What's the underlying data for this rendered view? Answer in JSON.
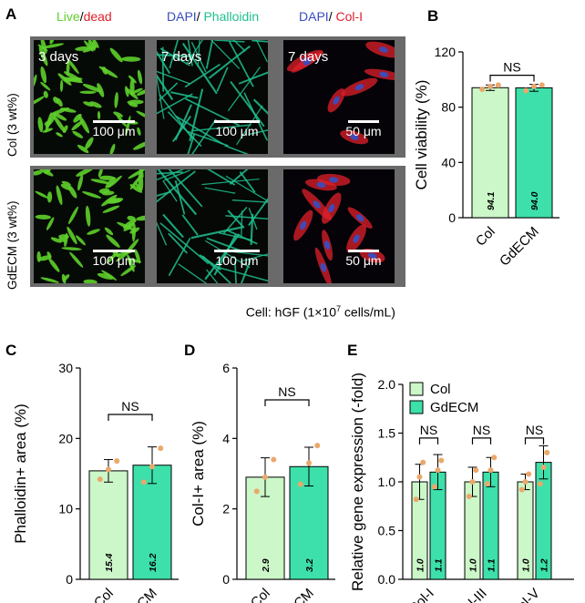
{
  "panel_a": {
    "letter": "A",
    "headers": {
      "col1_live": "Live",
      "col1_sep": "/",
      "col1_dead": "dead",
      "col2_dapi": "DAPI",
      "col2_sep": "/ ",
      "col2_phalloidin": "Phalloidin",
      "col3_dapi": "DAPI",
      "col3_sep": "/ ",
      "col3_coli": "Col-I"
    },
    "row_labels": [
      "Col (3 wt%)",
      "GdECM (3 wt%)"
    ],
    "time_labels": [
      "3 days",
      "7 days",
      "7 days"
    ],
    "scale_bars": [
      "100 μm",
      "100 μm",
      "50 μm",
      "100 μm",
      "100 μm",
      "50 μm"
    ],
    "cell_caption": "Cell: hGF (1×10",
    "cell_caption_exp": "7",
    "cell_caption_end": " cells/mL)",
    "colors": {
      "live": "#5ecf2b",
      "dead": "#e0202a",
      "dapi": "#3a4dbf",
      "phalloidin": "#1fbf8f",
      "coli": "#e0202a"
    }
  },
  "colors": {
    "col_fill": "#ccf7c9",
    "gdecm_fill": "#3de0aa",
    "dot": "#eba86b"
  },
  "chart_data": [
    {
      "panel": "B",
      "type": "bar",
      "categories": [
        "Col",
        "GdECM"
      ],
      "values": [
        94.1,
        94.0
      ],
      "value_labels": [
        "94.1",
        "94.0"
      ],
      "errors": [
        2,
        2.5
      ],
      "ylabel": "Cell viability (%)",
      "ylim": [
        0,
        120
      ],
      "yticks": [
        "0",
        "40",
        "80",
        "120"
      ],
      "significance": "NS",
      "points": [
        [
          93,
          95,
          96
        ],
        [
          92,
          95,
          96
        ]
      ]
    },
    {
      "panel": "C",
      "type": "bar",
      "categories": [
        "Col",
        "GdECM"
      ],
      "values": [
        15.4,
        16.2
      ],
      "value_labels": [
        "15.4",
        "16.2"
      ],
      "errors": [
        1.6,
        2.6
      ],
      "ylabel": "Phalloidin+ area (%)",
      "ylim": [
        0,
        30
      ],
      "yticks": [
        "0",
        "10",
        "20",
        "30"
      ],
      "significance": "NS",
      "points": [
        [
          14.2,
          15.6,
          16.8
        ],
        [
          13.8,
          16.0,
          18.6
        ]
      ]
    },
    {
      "panel": "D",
      "type": "bar",
      "categories": [
        "Col",
        "GdECM"
      ],
      "values": [
        2.9,
        3.2
      ],
      "value_labels": [
        "2.9",
        "3.2"
      ],
      "errors": [
        0.55,
        0.55
      ],
      "ylabel": "Col-I+ area (%)",
      "ylim": [
        0,
        6
      ],
      "yticks": [
        "0",
        "2",
        "4",
        "6"
      ],
      "significance": "NS",
      "points": [
        [
          2.5,
          2.9,
          3.4
        ],
        [
          2.7,
          3.3,
          3.8
        ]
      ]
    },
    {
      "panel": "E",
      "type": "bar",
      "categories": [
        "Col-I",
        "Col-III",
        "Col-V"
      ],
      "series": [
        {
          "name": "Col",
          "values": [
            1.0,
            1.0,
            1.0
          ],
          "value_labels": [
            "1.0",
            "1.0",
            "1.0"
          ],
          "errors": [
            0.18,
            0.15,
            0.08
          ],
          "points": [
            [
              0.82,
              1.05,
              1.2
            ],
            [
              0.85,
              1.0,
              1.12
            ],
            [
              0.92,
              1.0,
              1.08
            ]
          ]
        },
        {
          "name": "GdECM",
          "values": [
            1.1,
            1.1,
            1.2
          ],
          "value_labels": [
            "1.1",
            "1.1",
            "1.2"
          ],
          "errors": [
            0.18,
            0.15,
            0.17
          ],
          "points": [
            [
              0.95,
              1.12,
              1.22
            ],
            [
              0.98,
              1.12,
              1.25
            ],
            [
              0.98,
              1.15,
              1.3
            ]
          ]
        }
      ],
      "ylabel": "Relative gene expression (-fold)",
      "ylim": [
        0,
        2.0
      ],
      "yticks": [
        "0.0",
        "0.5",
        "1.0",
        "1.5",
        "2.0"
      ],
      "significance": [
        "NS",
        "NS",
        "NS"
      ],
      "legend": [
        "Col",
        "GdECM"
      ]
    }
  ]
}
